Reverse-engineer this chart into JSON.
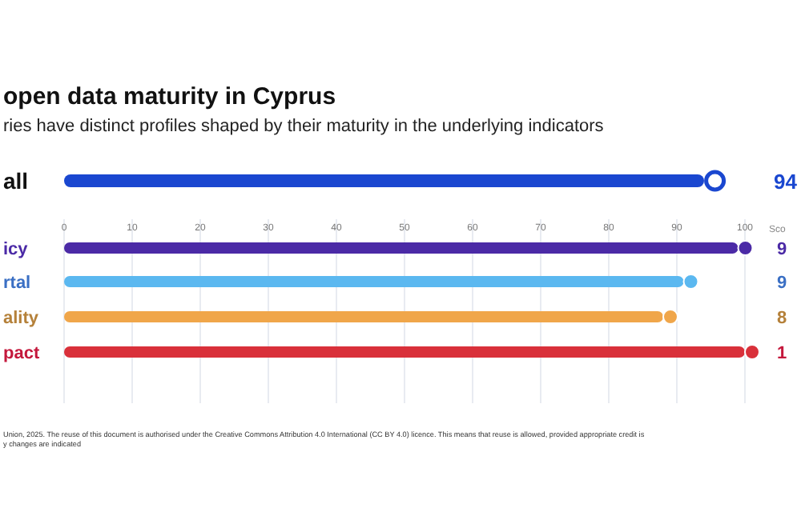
{
  "chart_data": {
    "type": "bar",
    "orientation": "horizontal",
    "title": "open data maturity in Cyprus",
    "subtitle": "ries have distinct profiles shaped by their maturity in the underlying indicators",
    "categories": [
      "all",
      "icy",
      "rtal",
      "ality",
      "pact"
    ],
    "values": [
      94,
      99,
      91,
      88,
      100
    ],
    "colors": [
      "#1a47d0",
      "#4b2aa6",
      "#5bb8f0",
      "#f0a64a",
      "#d9303a"
    ],
    "legend_title": "Sco",
    "xlim": [
      0,
      100
    ],
    "xticks": [
      0,
      10,
      20,
      30,
      40,
      50,
      60,
      70,
      80,
      90,
      100
    ],
    "grid": "x",
    "marker": "circle",
    "annotations": [
      "94",
      "9",
      "9",
      "8",
      "1",
      "Union, 2025. The reuse of this document is authorised under the Creative Commons Attribution 4.0 International (CC BY 4.0) licence. This means that reuse is allowed, provided appropriate credit is",
      "y changes are indicated"
    ]
  }
}
